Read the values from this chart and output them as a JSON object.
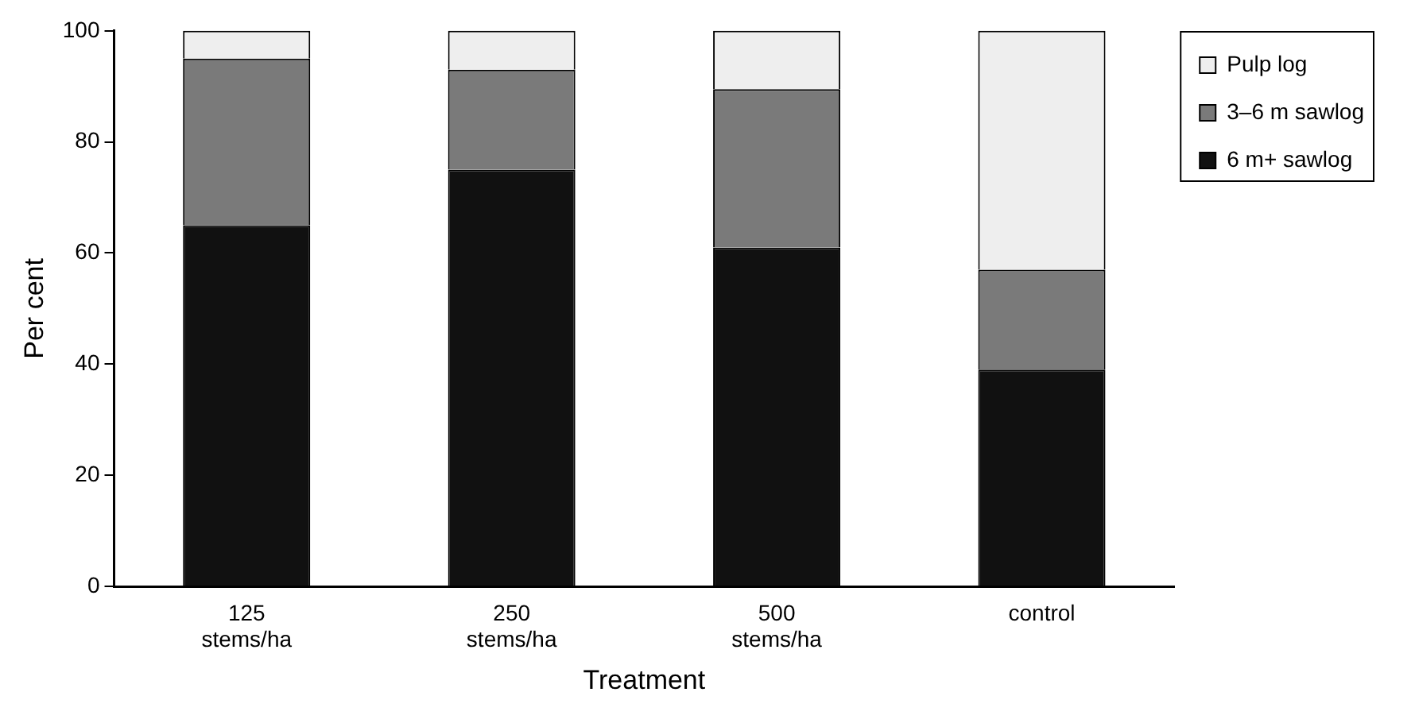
{
  "chart_data": {
    "type": "bar",
    "stacked": true,
    "xlabel": "Treatment",
    "ylabel": "Per cent",
    "categories": [
      "125 stems/ha",
      "250 stems/ha",
      "500 stems/ha",
      "control"
    ],
    "series": [
      {
        "name": "6 m+ sawlog",
        "color": "#111111",
        "values": [
          65,
          75,
          61,
          39
        ]
      },
      {
        "name": "3–6 m sawlog",
        "color": "#7a7a7a",
        "values": [
          30,
          18,
          28.5,
          18
        ]
      },
      {
        "name": "Pulp log",
        "color": "#eeeeee",
        "values": [
          5,
          7,
          10.5,
          43
        ]
      }
    ],
    "ylim": [
      0,
      100
    ],
    "yticks": [
      0,
      20,
      40,
      60,
      80,
      100
    ],
    "grid": false,
    "legend": "top right"
  }
}
